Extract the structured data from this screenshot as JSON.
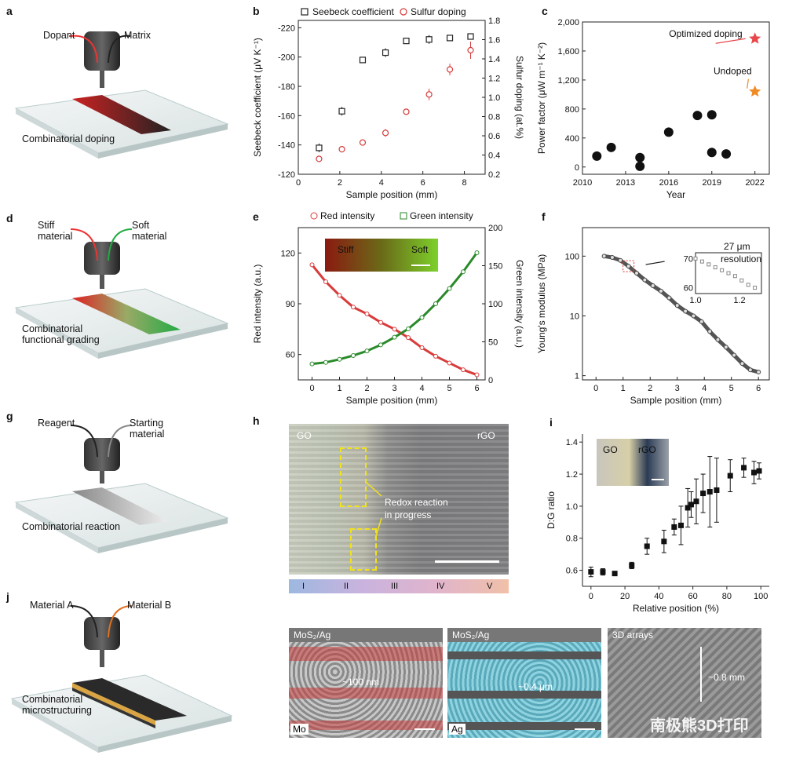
{
  "panels": {
    "a": {
      "letter": "a",
      "dopant": "Dopant",
      "matrix": "Matrix",
      "caption": "Combinatorial doping"
    },
    "d": {
      "letter": "d",
      "stiff": "Stiff\nmaterial",
      "soft": "Soft\nmaterial",
      "caption": "Combinatorial\nfunctional grading"
    },
    "g": {
      "letter": "g",
      "reagent": "Reagent",
      "starting": "Starting\nmaterial",
      "caption": "Combinatorial reaction"
    },
    "j": {
      "letter": "j",
      "matA": "Material A",
      "matB": "Material B",
      "caption": "Combinatorial\nmicrostructuring"
    },
    "h": {
      "letter": "h",
      "go": "GO",
      "rgo": "rGO",
      "annotation": "Redox reaction\nin progress",
      "zones": [
        "I",
        "II",
        "III",
        "IV",
        "V"
      ]
    },
    "bottom": {
      "img1_title": "MoS₂/Ag",
      "img1_scale": "~100 nm",
      "img1_corner": "Mo",
      "img2_title": "MoS₂/Ag",
      "img2_scale": "~0.4 μm",
      "img2_corner": "Ag",
      "img3_title": "3D arrays",
      "img3_scale": "~0.8 mm",
      "watermark": "南极熊3D打印"
    }
  },
  "chart_data": [
    {
      "id": "b",
      "type": "scatter",
      "letter": "b",
      "xlabel": "Sample position (mm)",
      "ylabel": "Seebeck coefficient (μV K⁻¹)",
      "y2label": "Sulfur doping (at.%)",
      "xlim": [
        0,
        9
      ],
      "ylim": [
        -120,
        -225
      ],
      "y2lim": [
        0.2,
        1.8
      ],
      "xticks": [
        0,
        2,
        4,
        6,
        8
      ],
      "yticks": [
        -220,
        -200,
        -180,
        -160,
        -140,
        -120
      ],
      "y2ticks": [
        0.2,
        0.4,
        0.6,
        0.8,
        1.0,
        1.2,
        1.4,
        1.6,
        1.8
      ],
      "series": [
        {
          "name": "Seebeck coefficient",
          "marker": "square",
          "color": "#222222",
          "x": [
            1.0,
            2.1,
            3.1,
            4.2,
            5.2,
            6.3,
            7.3,
            8.3
          ],
          "y": [
            -138,
            -163,
            -198,
            -203,
            -211,
            -212,
            -213,
            -214
          ],
          "err": [
            3,
            3,
            1,
            3,
            1,
            3,
            1,
            2
          ]
        },
        {
          "name": "Sulfur doping",
          "marker": "circle",
          "color": "#d63a3a",
          "axis": "y2",
          "x": [
            1.0,
            2.1,
            3.1,
            4.2,
            5.2,
            6.3,
            7.3,
            8.3
          ],
          "y": [
            0.36,
            0.46,
            0.53,
            0.63,
            0.85,
            1.03,
            1.29,
            1.49
          ],
          "err": [
            0.03,
            0.02,
            0.03,
            0.04,
            0.02,
            0.06,
            0.06,
            0.09
          ]
        }
      ]
    },
    {
      "id": "c",
      "type": "scatter",
      "letter": "c",
      "xlabel": "Year",
      "ylabel": "Power factor (μW m⁻¹ K⁻²)",
      "xlim": [
        2010,
        2023
      ],
      "ylim": [
        -100,
        2000
      ],
      "xticks": [
        2010,
        2013,
        2016,
        2019,
        2022
      ],
      "yticks": [
        0,
        400,
        800,
        1200,
        1600,
        2000
      ],
      "ytick_labels": [
        "0",
        "400",
        "800",
        "1,200",
        "1,600",
        "2,000"
      ],
      "series": [
        {
          "name": "",
          "marker": "sphere",
          "color": "#111111",
          "x": [
            2011,
            2012,
            2014,
            2014,
            2016,
            2018,
            2019,
            2019,
            2020
          ],
          "y": [
            150,
            270,
            130,
            10,
            480,
            710,
            720,
            200,
            180
          ]
        },
        {
          "name": "Optimized doping",
          "marker": "star",
          "color": "#e8484b",
          "x": [
            2022
          ],
          "y": [
            1770
          ]
        },
        {
          "name": "Undoped",
          "marker": "star",
          "color": "#f08a24",
          "x": [
            2022
          ],
          "y": [
            1040
          ]
        }
      ],
      "annotations": [
        "Optimized doping",
        "Undoped"
      ]
    },
    {
      "id": "e",
      "type": "line",
      "letter": "e",
      "xlabel": "Sample position (mm)",
      "ylabel": "Red intensity (a.u.)",
      "y2label": "Green intensity (a.u.)",
      "xlim": [
        -0.5,
        6.3
      ],
      "ylim": [
        45,
        135
      ],
      "y2lim": [
        0,
        200
      ],
      "xticks": [
        0,
        1,
        2,
        3,
        4,
        5,
        6
      ],
      "yticks": [
        60,
        90,
        120
      ],
      "y2ticks": [
        0,
        50,
        100,
        150,
        200
      ],
      "series": [
        {
          "name": "Red intensity",
          "color": "#d93b3b",
          "x": [
            0,
            0.5,
            1,
            1.5,
            2,
            2.5,
            3,
            3.5,
            4,
            4.5,
            5,
            5.5,
            6
          ],
          "y": [
            113,
            103,
            95,
            88,
            84,
            79,
            75,
            70,
            64,
            59,
            55,
            51,
            48
          ]
        },
        {
          "name": "Green intensity",
          "color": "#2a8a2a",
          "axis": "y2",
          "x": [
            0,
            0.5,
            1,
            1.5,
            2,
            2.5,
            3,
            3.5,
            4,
            4.5,
            5,
            5.5,
            6
          ],
          "y": [
            21,
            23,
            27,
            32,
            38,
            46,
            56,
            67,
            82,
            100,
            120,
            142,
            167
          ]
        }
      ],
      "inset": {
        "left": "Stiff",
        "right": "Soft"
      }
    },
    {
      "id": "f",
      "type": "line",
      "letter": "f",
      "xlabel": "Sample position (mm)",
      "ylabel": "Young's modulus (MPa)",
      "xlim": [
        -0.5,
        6.4
      ],
      "yscale": "log",
      "ylim": [
        0.85,
        300
      ],
      "xticks": [
        0,
        1,
        2,
        3,
        4,
        5,
        6
      ],
      "yticks": [
        1,
        10,
        100
      ],
      "series": [
        {
          "name": "",
          "color": "#444444",
          "x": [
            0.3,
            0.6,
            0.9,
            1.2,
            1.5,
            1.8,
            2.1,
            2.4,
            2.7,
            3.0,
            3.3,
            3.6,
            3.9,
            4.2,
            4.5,
            4.8,
            5.1,
            5.4,
            5.7,
            6.0
          ],
          "y": [
            100,
            95,
            85,
            68,
            52,
            40,
            32,
            26,
            20,
            15,
            12,
            10,
            8,
            5.5,
            4,
            3,
            2.2,
            1.6,
            1.25,
            1.15
          ]
        }
      ],
      "inset": {
        "text": "27 μm\nresolution",
        "xticks": [
          "1.0",
          "1.2"
        ],
        "yticks": [
          "60",
          "70"
        ],
        "x": [
          1.0,
          1.03,
          1.06,
          1.09,
          1.12,
          1.15,
          1.18,
          1.21,
          1.24,
          1.27
        ],
        "y": [
          70,
          69,
          68,
          67,
          66,
          65,
          64,
          62.5,
          61,
          60
        ]
      }
    },
    {
      "id": "i",
      "type": "scatter",
      "letter": "i",
      "xlabel": "Relative position (%)",
      "ylabel": "D:G ratio",
      "xlim": [
        -5,
        105
      ],
      "ylim": [
        0.5,
        1.45
      ],
      "xticks": [
        0,
        20,
        40,
        60,
        80,
        100
      ],
      "yticks": [
        0.6,
        0.8,
        1.0,
        1.2,
        1.4
      ],
      "series": [
        {
          "name": "",
          "marker": "square",
          "color": "#111111",
          "x": [
            0,
            7,
            14,
            24,
            33,
            43,
            49,
            53,
            57,
            59,
            62,
            66,
            70,
            74,
            82,
            90,
            96,
            99
          ],
          "y": [
            0.59,
            0.59,
            0.58,
            0.63,
            0.75,
            0.78,
            0.87,
            0.88,
            0.99,
            1.01,
            1.03,
            1.08,
            1.09,
            1.1,
            1.19,
            1.24,
            1.21,
            1.22
          ],
          "err": [
            0.03,
            0.02,
            0.01,
            0.02,
            0.05,
            0.07,
            0.05,
            0.12,
            0.12,
            0.08,
            0.14,
            0.12,
            0.22,
            0.2,
            0.1,
            0.06,
            0.07,
            0.05
          ]
        }
      ],
      "inset": {
        "left": "GO",
        "right": "rGO"
      }
    }
  ]
}
